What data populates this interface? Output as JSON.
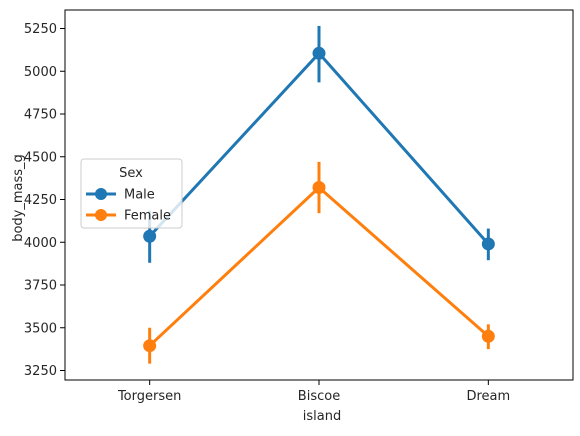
{
  "chart_data": {
    "type": "line",
    "title": "",
    "xlabel": "island",
    "ylabel": "body_mass_g",
    "categories": [
      "Torgersen",
      "Biscoe",
      "Dream"
    ],
    "ylim": [
      3200,
      5300
    ],
    "yticks": [
      3250,
      3500,
      3750,
      4000,
      4250,
      4500,
      4750,
      5000,
      5250
    ],
    "grid": false,
    "legend": {
      "title": "Sex",
      "placement": "center-left"
    },
    "series": [
      {
        "name": "Male",
        "color": "#1f77b4",
        "values": [
          4035,
          5105,
          3990
        ],
        "ci_low": [
          3880,
          4935,
          3895
        ],
        "ci_high": [
          4185,
          5265,
          4080
        ]
      },
      {
        "name": "Female",
        "color": "#ff7f0e",
        "values": [
          3395,
          4320,
          3450
        ],
        "ci_low": [
          3290,
          4170,
          3375
        ],
        "ci_high": [
          3500,
          4470,
          3520
        ]
      }
    ]
  }
}
